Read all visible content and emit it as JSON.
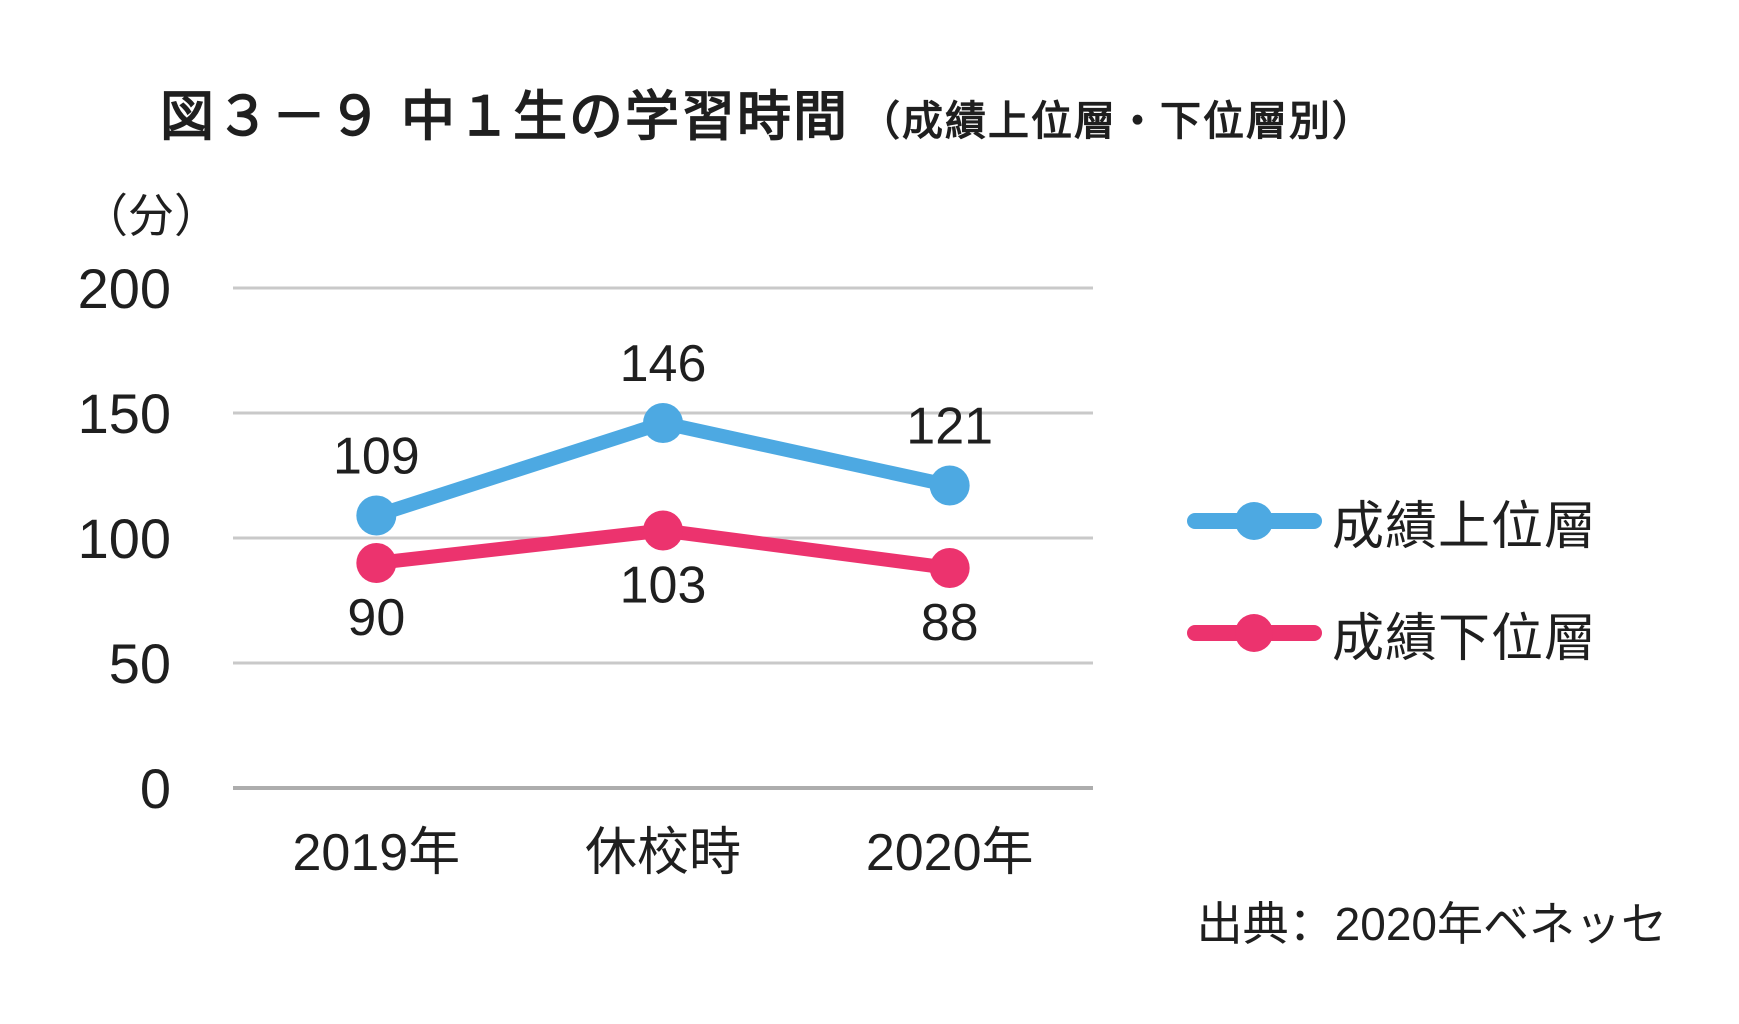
{
  "title": {
    "main": "図３－９ 中１生の学習時間",
    "sub": "（成績上位層・下位層別）"
  },
  "source_note": "出典：2020年ベネッセ",
  "chart_data": {
    "type": "line",
    "title": "図３－９ 中１生の学習時間（成績上位層・下位層別）",
    "unit_label": "（分）",
    "xlabel": "",
    "ylabel": "（分）",
    "categories": [
      "2019年",
      "休校時",
      "2020年"
    ],
    "series": [
      {
        "name": "成績上位層",
        "values": [
          109,
          146,
          121
        ],
        "color": "#4da9e2",
        "label_position": "above"
      },
      {
        "name": "成績下位層",
        "values": [
          90,
          103,
          88
        ],
        "color": "#ec336e",
        "label_position": "below"
      }
    ],
    "ylim": [
      0,
      200
    ],
    "yticks": [
      200,
      150,
      100,
      50,
      0
    ],
    "grid": true,
    "legend_position": "right",
    "gridline_color": "#c9c9c9",
    "baseline_color": "#adadad",
    "text_color": "#1f1f1f"
  }
}
